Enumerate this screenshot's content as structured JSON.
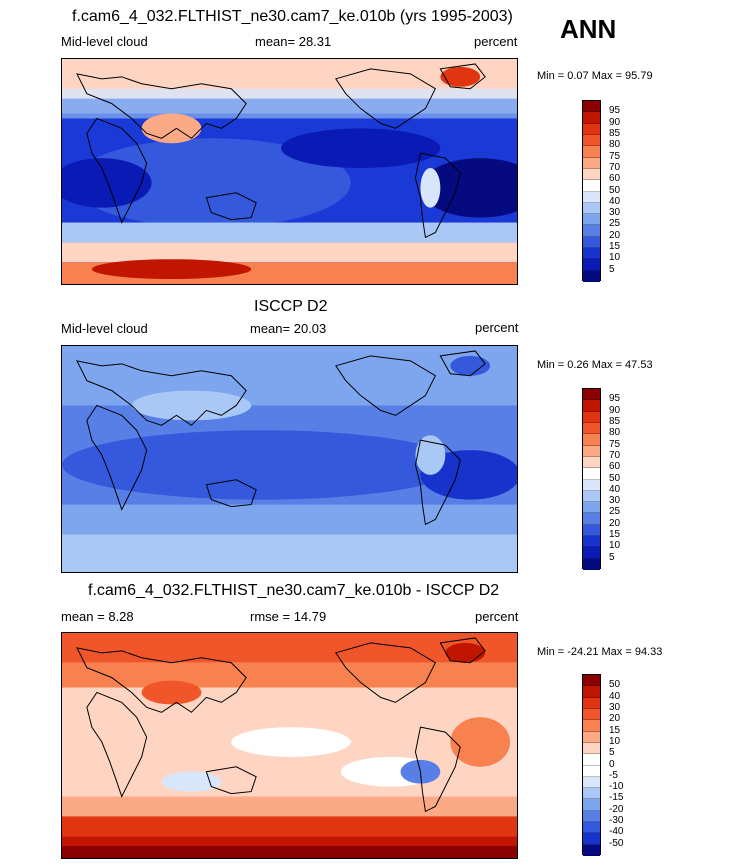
{
  "season": "ANN",
  "panel1": {
    "title": "f.cam6_4_032.FLTHIST_ne30.cam7_ke.010b (yrs 1995-2003)",
    "left": "Mid-level cloud",
    "center": "mean=  28.31",
    "right": "percent",
    "minmax": "Min =   0.07 Max =   95.79"
  },
  "panel2": {
    "title": "ISCCP D2",
    "left": "Mid-level cloud",
    "center": "mean=  20.03",
    "right": "percent",
    "minmax": "Min =   0.26 Max =   47.53"
  },
  "panel3": {
    "title": "f.cam6_4_032.FLTHIST_ne30.cam7_ke.010b - ISCCP D2",
    "left": "mean =   8.28",
    "center": "rmse =  14.79",
    "right": "percent",
    "minmax": "Min = -24.21 Max =  94.33"
  },
  "colorbar_abs": {
    "labels": [
      "95",
      "90",
      "85",
      "80",
      "75",
      "70",
      "60",
      "50",
      "40",
      "30",
      "25",
      "20",
      "15",
      "10",
      "5"
    ],
    "colors": [
      "#8b0000",
      "#c21500",
      "#e03510",
      "#f0562a",
      "#f7814f",
      "#fbaa85",
      "#fdd5c2",
      "#ffffff",
      "#d7e6fb",
      "#aac8f5",
      "#7ea6ee",
      "#577fe6",
      "#3459dc",
      "#1733cc",
      "#0a1ab5",
      "#050a80"
    ]
  },
  "colorbar_diff": {
    "labels": [
      "50",
      "40",
      "30",
      "20",
      "15",
      "10",
      "5",
      "0",
      "-5",
      "-10",
      "-15",
      "-20",
      "-30",
      "-40",
      "-50"
    ],
    "colors": [
      "#8b0000",
      "#c21500",
      "#e03510",
      "#f0562a",
      "#f7814f",
      "#fbaa85",
      "#fdd5c2",
      "#ffffff",
      "#ffffff",
      "#d7e6fb",
      "#aac8f5",
      "#7ea6ee",
      "#577fe6",
      "#3459dc",
      "#1733cc",
      "#050a80"
    ]
  }
}
